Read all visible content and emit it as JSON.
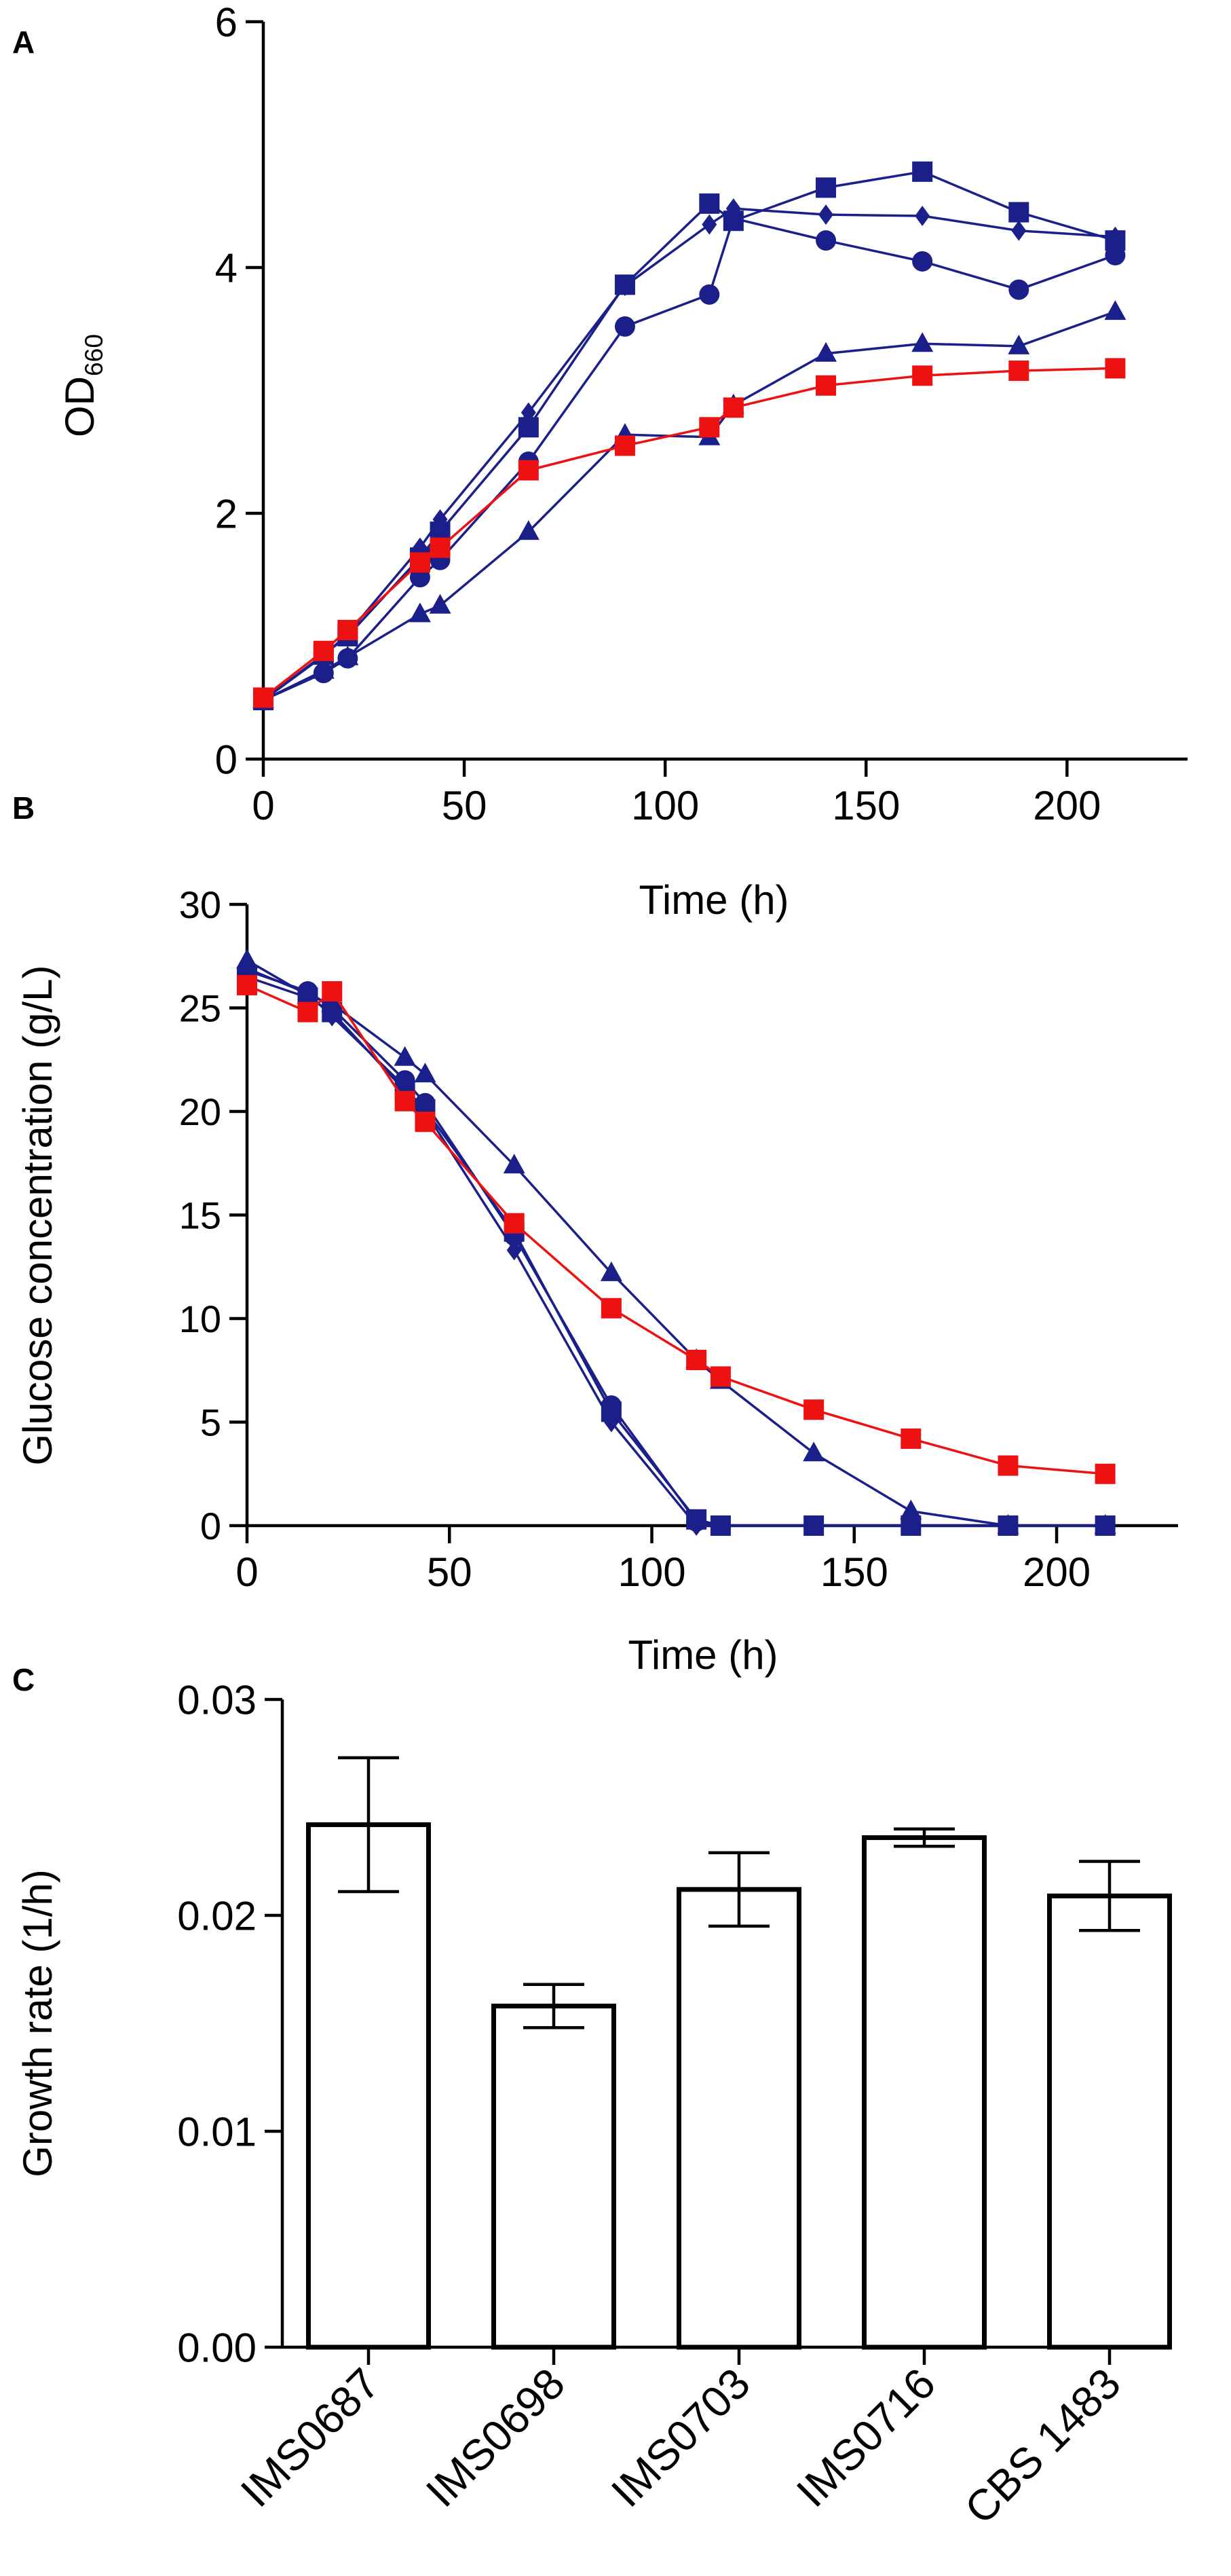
{
  "panels": {
    "a": "A",
    "b": "B",
    "c": "C"
  },
  "colors": {
    "navy": "#1b1f8a",
    "red": "#ee1111",
    "black": "#000000"
  },
  "chart_data": [
    {
      "type": "line",
      "panel": "A",
      "xlabel": "Time (h)",
      "ylabel": "OD",
      "ylabel_sub": "660",
      "xlim": [
        0,
        230
      ],
      "ylim": [
        0,
        6
      ],
      "xticks": [
        0,
        50,
        100,
        150,
        200
      ],
      "yticks": [
        0,
        2,
        4,
        6
      ],
      "series": [
        {
          "name": "IMS0687",
          "marker": "circle",
          "color": "#1b1f8a",
          "x": [
            0,
            15,
            21,
            39,
            44,
            66,
            90,
            111,
            117,
            140,
            164,
            188,
            212
          ],
          "y": [
            0.48,
            0.7,
            0.82,
            1.48,
            1.62,
            2.42,
            3.52,
            3.78,
            4.4,
            4.22,
            4.05,
            3.82,
            4.1
          ]
        },
        {
          "name": "IMS0698",
          "marker": "triangle",
          "color": "#1b1f8a",
          "x": [
            0,
            15,
            21,
            39,
            44,
            66,
            90,
            111,
            117,
            140,
            164,
            188,
            212
          ],
          "y": [
            0.48,
            0.72,
            0.83,
            1.18,
            1.25,
            1.85,
            2.64,
            2.62,
            2.88,
            3.3,
            3.38,
            3.36,
            3.64
          ]
        },
        {
          "name": "IMS0703",
          "marker": "square",
          "color": "#1b1f8a",
          "x": [
            0,
            15,
            21,
            39,
            44,
            66,
            90,
            111,
            117,
            140,
            164,
            188,
            212
          ],
          "y": [
            0.48,
            0.85,
            1.0,
            1.64,
            1.85,
            2.7,
            3.86,
            4.52,
            4.38,
            4.65,
            4.78,
            4.45,
            4.22
          ]
        },
        {
          "name": "IMS0716",
          "marker": "diamond",
          "color": "#1b1f8a",
          "x": [
            0,
            15,
            21,
            39,
            44,
            66,
            90,
            111,
            117,
            140,
            164,
            188,
            212
          ],
          "y": [
            0.48,
            0.84,
            1.02,
            1.72,
            1.95,
            2.82,
            3.85,
            4.35,
            4.48,
            4.43,
            4.42,
            4.3,
            4.25
          ]
        },
        {
          "name": "CBS 1483",
          "marker": "square",
          "color": "#ee1111",
          "x": [
            0,
            15,
            21,
            39,
            44,
            66,
            90,
            111,
            117,
            140,
            164,
            188,
            212
          ],
          "y": [
            0.5,
            0.88,
            1.05,
            1.6,
            1.72,
            2.35,
            2.55,
            2.7,
            2.86,
            3.04,
            3.12,
            3.16,
            3.18
          ]
        }
      ]
    },
    {
      "type": "line",
      "panel": "B",
      "xlabel": "Time (h)",
      "ylabel": "Glucose concentration (g/L)",
      "xlim": [
        0,
        230
      ],
      "ylim": [
        0,
        30
      ],
      "xticks": [
        0,
        50,
        100,
        150,
        200
      ],
      "yticks": [
        0,
        5,
        10,
        15,
        20,
        25,
        30
      ],
      "series": [
        {
          "name": "IMS0687",
          "marker": "circle",
          "color": "#1b1f8a",
          "x": [
            0,
            15,
            21,
            39,
            44,
            66,
            90,
            111,
            117,
            140,
            164,
            188,
            212
          ],
          "y": [
            26.8,
            25.8,
            25.0,
            21.5,
            20.4,
            14.0,
            5.8,
            0.2,
            0,
            0,
            0,
            0,
            0
          ]
        },
        {
          "name": "IMS0698",
          "marker": "triangle",
          "color": "#1b1f8a",
          "x": [
            0,
            15,
            21,
            39,
            44,
            66,
            90,
            111,
            117,
            140,
            164,
            188,
            212
          ],
          "y": [
            27.3,
            25.6,
            25.2,
            22.6,
            21.8,
            17.4,
            12.2,
            8.0,
            7.0,
            3.5,
            0.7,
            0,
            0
          ]
        },
        {
          "name": "IMS0703",
          "marker": "square",
          "color": "#1b1f8a",
          "x": [
            0,
            15,
            21,
            39,
            44,
            66,
            90,
            111,
            117,
            140,
            164,
            188,
            212
          ],
          "y": [
            26.5,
            25.5,
            24.8,
            21.0,
            20.1,
            14.2,
            5.5,
            0.3,
            0,
            0,
            0,
            0,
            0
          ]
        },
        {
          "name": "IMS0716",
          "marker": "diamond",
          "color": "#1b1f8a",
          "x": [
            0,
            15,
            21,
            39,
            44,
            66,
            90,
            111,
            117,
            140,
            164,
            188,
            212
          ],
          "y": [
            26.9,
            25.7,
            24.6,
            21.2,
            20.0,
            13.3,
            5.0,
            0,
            0,
            0,
            0,
            0,
            0
          ]
        },
        {
          "name": "CBS 1483",
          "marker": "square",
          "color": "#ee1111",
          "x": [
            0,
            15,
            21,
            39,
            44,
            66,
            90,
            111,
            117,
            140,
            164,
            188,
            212
          ],
          "y": [
            26.1,
            24.8,
            25.8,
            20.5,
            19.5,
            14.6,
            10.5,
            8.0,
            7.2,
            5.6,
            4.2,
            2.9,
            2.5
          ]
        }
      ]
    },
    {
      "type": "bar",
      "panel": "C",
      "ylabel": "Growth rate  (1/h)",
      "ylim": [
        0,
        0.03
      ],
      "yticks": [
        "0.00",
        "0.01",
        "0.02",
        "0.03"
      ],
      "categories": [
        "IMS0687",
        "IMS0698",
        "IMS0703",
        "IMS0716",
        "CBS 1483"
      ],
      "values": [
        0.0242,
        0.0158,
        0.0212,
        0.0236,
        0.0209
      ],
      "errors": [
        0.0031,
        0.001,
        0.0017,
        0.0004,
        0.0016
      ]
    }
  ]
}
